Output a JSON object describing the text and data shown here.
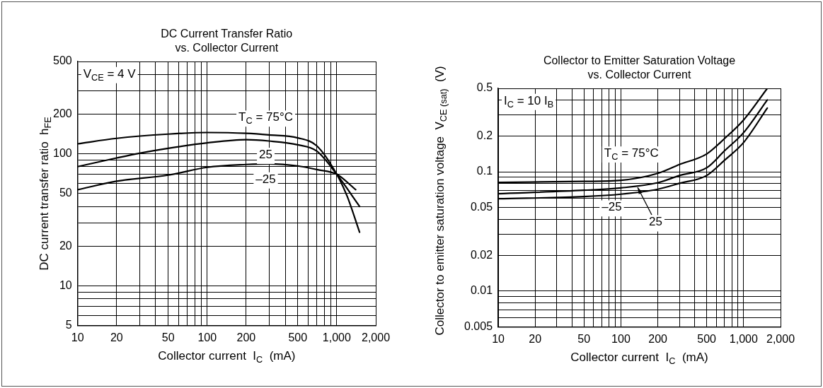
{
  "chart_data": [
    {
      "type": "line",
      "title": "DC Current Transfer Ratio\nvs. Collector Current",
      "xlabel": "Collector current  I$_{C}$  (mA)",
      "ylabel": "DC current transfer ratio  h$_{FE}$",
      "log": "xy",
      "grid": true,
      "line_style": "solid",
      "marker": "none",
      "xlim": [
        10,
        2000
      ],
      "ylim": [
        5,
        500
      ],
      "xticks": [
        10,
        20,
        {
          "value": 30,
          "label": null
        },
        {
          "value": 40,
          "label": null
        },
        50,
        {
          "value": 60,
          "label": null
        },
        {
          "value": 70,
          "label": null
        },
        {
          "value": 80,
          "label": null
        },
        {
          "value": 90,
          "label": null
        },
        100,
        200,
        {
          "value": 300,
          "label": null
        },
        {
          "value": 400,
          "label": null
        },
        500,
        {
          "value": 600,
          "label": null
        },
        {
          "value": 700,
          "label": null
        },
        {
          "value": 800,
          "label": null
        },
        {
          "value": 900,
          "label": null
        },
        {
          "value": 1000,
          "label": "1,000"
        },
        {
          "value": 2000,
          "label": "2,000"
        }
      ],
      "yticks": [
        5,
        {
          "value": 6,
          "label": null
        },
        {
          "value": 7,
          "label": null
        },
        {
          "value": 8,
          "label": null
        },
        {
          "value": 9,
          "label": null
        },
        10,
        20,
        {
          "value": 30,
          "label": null
        },
        {
          "value": 40,
          "label": null
        },
        50,
        {
          "value": 60,
          "label": null
        },
        {
          "value": 70,
          "label": null
        },
        {
          "value": 80,
          "label": null
        },
        {
          "value": 90,
          "label": null
        },
        100,
        200,
        {
          "value": 300,
          "label": null
        },
        {
          "value": 400,
          "label": null
        },
        500
      ],
      "series": [
        {
          "name": "T$_{C}$ = 75°C",
          "color": "#000000",
          "x": [
            10,
            20,
            50,
            100,
            200,
            300,
            500,
            700,
            1000,
            1200,
            1500
          ],
          "values": [
            119,
            131,
            141,
            145,
            143,
            139,
            132,
            115,
            70,
            48,
            25.5
          ]
        },
        {
          "name": "25",
          "color": "#000000",
          "x": [
            10,
            20,
            30,
            50,
            100,
            200,
            300,
            500,
            700,
            1000,
            1500
          ],
          "values": [
            80,
            93,
            101,
            110,
            121,
            128,
            125,
            117,
            105,
            70,
            40
          ]
        },
        {
          "name": "–25",
          "color": "#000000",
          "x": [
            10,
            20,
            50,
            100,
            200,
            300,
            500,
            700,
            1000,
            1400
          ],
          "values": [
            53.5,
            62,
            69,
            79,
            83,
            84,
            81,
            76,
            70,
            53.5
          ]
        }
      ],
      "annotations": [
        "V$_{CE}$ = 4 V"
      ]
    },
    {
      "type": "line",
      "title": "Collector to Emitter Saturation Voltage\nvs. Collector Current",
      "xlabel": "Collector current  I$_{C}$  (mA)",
      "ylabel": "Collector to emitter saturation voltage  V$_{CE (sat)}$  (V)",
      "log": "xy",
      "grid": true,
      "line_style": "solid",
      "marker": "none",
      "xlim": [
        10,
        2000
      ],
      "ylim": [
        0.005,
        0.5
      ],
      "xticks": [
        10,
        20,
        {
          "value": 30,
          "label": null
        },
        {
          "value": 40,
          "label": null
        },
        50,
        {
          "value": 60,
          "label": null
        },
        {
          "value": 70,
          "label": null
        },
        {
          "value": 80,
          "label": null
        },
        {
          "value": 90,
          "label": null
        },
        100,
        200,
        {
          "value": 300,
          "label": null
        },
        {
          "value": 400,
          "label": null
        },
        500,
        {
          "value": 600,
          "label": null
        },
        {
          "value": 700,
          "label": null
        },
        {
          "value": 800,
          "label": null
        },
        {
          "value": 900,
          "label": null
        },
        {
          "value": 1000,
          "label": "1,000"
        },
        {
          "value": 2000,
          "label": "2,000"
        }
      ],
      "yticks": [
        0.005,
        {
          "value": 0.006,
          "label": null
        },
        {
          "value": 0.007,
          "label": null
        },
        {
          "value": 0.008,
          "label": null
        },
        {
          "value": 0.009,
          "label": null
        },
        0.01,
        0.02,
        {
          "value": 0.03,
          "label": null
        },
        {
          "value": 0.04,
          "label": null
        },
        0.05,
        {
          "value": 0.06,
          "label": null
        },
        {
          "value": 0.07,
          "label": null
        },
        {
          "value": 0.08,
          "label": null
        },
        {
          "value": 0.09,
          "label": null
        },
        0.1,
        0.2,
        {
          "value": 0.3,
          "label": null
        },
        {
          "value": 0.4,
          "label": null
        },
        0.5
      ],
      "series": [
        {
          "name": "T$_{C}$ = 75°C",
          "color": "#000000",
          "x": [
            10,
            50,
            100,
            200,
            300,
            500,
            700,
            1000,
            1560
          ],
          "values": [
            0.0815,
            0.083,
            0.0848,
            0.097,
            0.115,
            0.141,
            0.19,
            0.272,
            0.5
          ]
        },
        {
          "name": "25",
          "color": "#000000",
          "x": [
            10,
            50,
            100,
            200,
            300,
            500,
            700,
            1000,
            1560
          ],
          "values": [
            0.0655,
            0.07,
            0.0733,
            0.081,
            0.093,
            0.108,
            0.15,
            0.213,
            0.4
          ]
        },
        {
          "name": "–25",
          "color": "#000000",
          "x": [
            10,
            50,
            100,
            200,
            300,
            500,
            700,
            1000,
            1560
          ],
          "values": [
            0.0594,
            0.062,
            0.0649,
            0.0714,
            0.08,
            0.093,
            0.125,
            0.176,
            0.342
          ]
        }
      ],
      "annotations": [
        "I$_{C}$ = 10 I$_{B}$"
      ]
    }
  ]
}
